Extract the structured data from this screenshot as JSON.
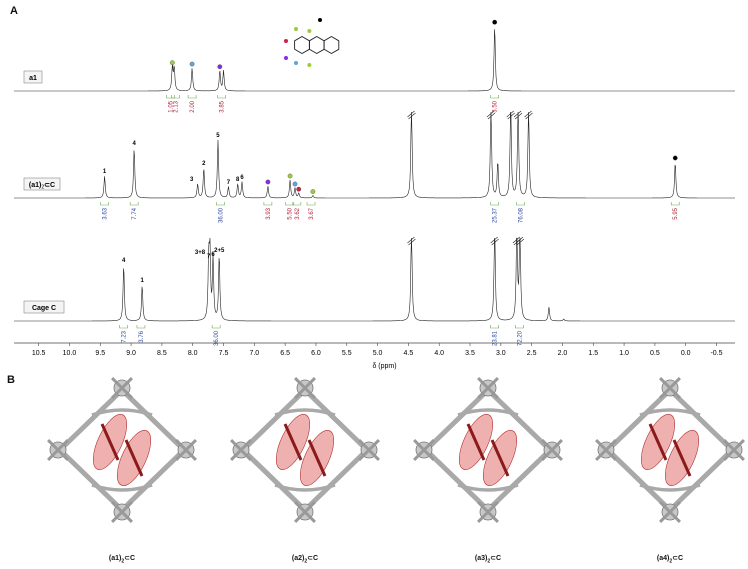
{
  "panel_a_label": "A",
  "panel_b_label": "B",
  "colors": {
    "spectrum": "#222222",
    "integral_red": "#b0263a",
    "integral_blue": "#2e4aa3",
    "bracket_green": "#6aa84f",
    "dot_green": "#9ccc3c",
    "dot_blue": "#5da4e0",
    "dot_purple": "#8a2be2",
    "dot_red": "#cc2244",
    "dot_black": "#000000",
    "guest_red": "#d9534f",
    "cage_grey": "#a9a9a9"
  },
  "chart_data": {
    "type": "line",
    "xlabel": "δ (ppm)",
    "xlim": [
      10.9,
      -0.8
    ],
    "x_reversed": true,
    "ticks": [
      "10.5",
      "10.0",
      "9.5",
      "9.0",
      "8.5",
      "8.0",
      "7.5",
      "7.0",
      "6.5",
      "6.0",
      "5.5",
      "5.0",
      "4.5",
      "4.0",
      "3.5",
      "3.0",
      "2.5",
      "2.0",
      "1.5",
      "1.0",
      "0.5",
      "0.0",
      "-0.5"
    ],
    "series": [
      {
        "name": "a1",
        "name_main": "a1",
        "name_sub": "",
        "name_tail": "",
        "peaks": [
          {
            "ppm": 8.33,
            "height": 0.9,
            "label": "",
            "dot": "green"
          },
          {
            "ppm": 8.3,
            "height": 0.85,
            "label": "",
            "dot": ""
          },
          {
            "ppm": 8.01,
            "height": 0.85,
            "label": "",
            "dot": "blue"
          },
          {
            "ppm": 7.56,
            "height": 0.75,
            "label": "",
            "dot": "purple"
          },
          {
            "ppm": 7.5,
            "height": 0.75,
            "label": "",
            "dot": ""
          },
          {
            "ppm": 3.1,
            "height": 2.4,
            "label": "",
            "dot": "black"
          }
        ],
        "integrals": [
          {
            "ppm": 8.36,
            "value": "1.05",
            "color": "red"
          },
          {
            "ppm": 8.28,
            "value": "2.13",
            "color": "red"
          },
          {
            "ppm": 8.01,
            "value": "2.00",
            "color": "red"
          },
          {
            "ppm": 7.53,
            "value": "3.85",
            "color": "red"
          },
          {
            "ppm": 3.1,
            "value": "3.50",
            "color": "red"
          }
        ]
      },
      {
        "name": "(a1)2⊂C",
        "name_main": "(a1)",
        "name_sub": "2",
        "name_tail": "⊂C",
        "peaks": [
          {
            "ppm": 9.43,
            "height": 0.55,
            "label": "1",
            "dot": ""
          },
          {
            "ppm": 8.95,
            "height": 1.25,
            "label": "4",
            "dot": ""
          },
          {
            "ppm": 7.82,
            "height": 0.75,
            "label": "2",
            "dot": ""
          },
          {
            "ppm": 7.92,
            "height": 0.35,
            "label": "3",
            "dot": ""
          },
          {
            "ppm": 7.59,
            "height": 1.45,
            "label": "5",
            "dot": ""
          },
          {
            "ppm": 7.42,
            "height": 0.28,
            "label": "7",
            "dot": ""
          },
          {
            "ppm": 7.27,
            "height": 0.35,
            "label": "8",
            "dot": ""
          },
          {
            "ppm": 7.2,
            "height": 0.4,
            "label": "6",
            "dot": ""
          },
          {
            "ppm": 6.78,
            "height": 0.3,
            "label": "",
            "dot": "purple"
          },
          {
            "ppm": 6.42,
            "height": 0.45,
            "label": "",
            "dot": "green"
          },
          {
            "ppm": 6.34,
            "height": 0.25,
            "label": "",
            "dot": "blue"
          },
          {
            "ppm": 6.28,
            "height": 0.12,
            "label": "",
            "dot": "red"
          },
          {
            "ppm": 6.05,
            "height": 0.06,
            "label": "",
            "dot": "green"
          },
          {
            "ppm": 4.45,
            "height": 2.4,
            "label": "",
            "dot": "",
            "truncated": true
          },
          {
            "ppm": 3.16,
            "height": 2.4,
            "label": "",
            "dot": "",
            "truncated": true
          },
          {
            "ppm": 3.05,
            "height": 0.9,
            "label": "",
            "dot": ""
          },
          {
            "ppm": 2.84,
            "height": 2.4,
            "label": "",
            "dot": "",
            "truncated": true
          },
          {
            "ppm": 2.72,
            "height": 2.4,
            "label": "",
            "dot": "",
            "truncated": true
          },
          {
            "ppm": 2.55,
            "height": 2.3,
            "label": "",
            "dot": "",
            "truncated": true
          },
          {
            "ppm": 0.17,
            "height": 0.9,
            "label": "",
            "dot": "black"
          }
        ],
        "integrals": [
          {
            "ppm": 9.43,
            "value": "3.63",
            "color": "blue"
          },
          {
            "ppm": 8.95,
            "value": "7.74",
            "color": "blue"
          },
          {
            "ppm": 7.55,
            "value": "36.00",
            "color": "blue"
          },
          {
            "ppm": 6.78,
            "value": "3.93",
            "color": "red"
          },
          {
            "ppm": 6.43,
            "value": "5.50",
            "color": "red"
          },
          {
            "ppm": 6.31,
            "value": "3.62",
            "color": "red"
          },
          {
            "ppm": 6.08,
            "value": "3.67",
            "color": "red"
          },
          {
            "ppm": 3.1,
            "value": "25.37",
            "color": "blue"
          },
          {
            "ppm": 2.68,
            "value": "76.08",
            "color": "blue"
          },
          {
            "ppm": 0.17,
            "value": "5.95",
            "color": "red"
          }
        ]
      },
      {
        "name": "Cage C",
        "name_main": "Cage C",
        "name_sub": "",
        "name_tail": "",
        "peaks": [
          {
            "ppm": 9.12,
            "height": 1.4,
            "label": "4",
            "dot": ""
          },
          {
            "ppm": 8.82,
            "height": 0.9,
            "label": "1",
            "dot": ""
          },
          {
            "ppm": 7.72,
            "height": 1.6,
            "label": "3+8",
            "dot": ""
          },
          {
            "ppm": 7.67,
            "height": 1.55,
            "label": "6",
            "dot": ""
          },
          {
            "ppm": 7.74,
            "height": 1.5,
            "label": "7",
            "dot": ""
          },
          {
            "ppm": 7.57,
            "height": 1.65,
            "label": "2+5",
            "dot": ""
          },
          {
            "ppm": 4.45,
            "height": 2.4,
            "label": "",
            "dot": "",
            "truncated": true
          },
          {
            "ppm": 3.1,
            "height": 2.4,
            "label": "",
            "dot": "",
            "truncated": true
          },
          {
            "ppm": 2.74,
            "height": 2.4,
            "label": "",
            "dot": "",
            "truncated": true
          },
          {
            "ppm": 2.69,
            "height": 2.4,
            "label": "",
            "dot": "",
            "truncated": true
          },
          {
            "ppm": 2.22,
            "height": 0.35,
            "label": "",
            "dot": ""
          },
          {
            "ppm": 1.98,
            "height": 0.05,
            "label": "",
            "dot": ""
          }
        ],
        "integrals": [
          {
            "ppm": 9.12,
            "value": "7.23",
            "color": "blue"
          },
          {
            "ppm": 8.84,
            "value": "3.76",
            "color": "blue"
          },
          {
            "ppm": 7.62,
            "value": "36.00",
            "color": "blue"
          },
          {
            "ppm": 3.1,
            "value": "23.81",
            "color": "blue"
          },
          {
            "ppm": 2.7,
            "value": "72.20",
            "color": "blue"
          }
        ]
      }
    ]
  },
  "panel_b": {
    "structures": [
      {
        "main": "(a1)",
        "sub": "2",
        "tail": "⊂C"
      },
      {
        "main": "(a2)",
        "sub": "2",
        "tail": "⊂C"
      },
      {
        "main": "(a3)",
        "sub": "2",
        "tail": "⊂C"
      },
      {
        "main": "(a4)",
        "sub": "2",
        "tail": "⊂C"
      }
    ]
  }
}
